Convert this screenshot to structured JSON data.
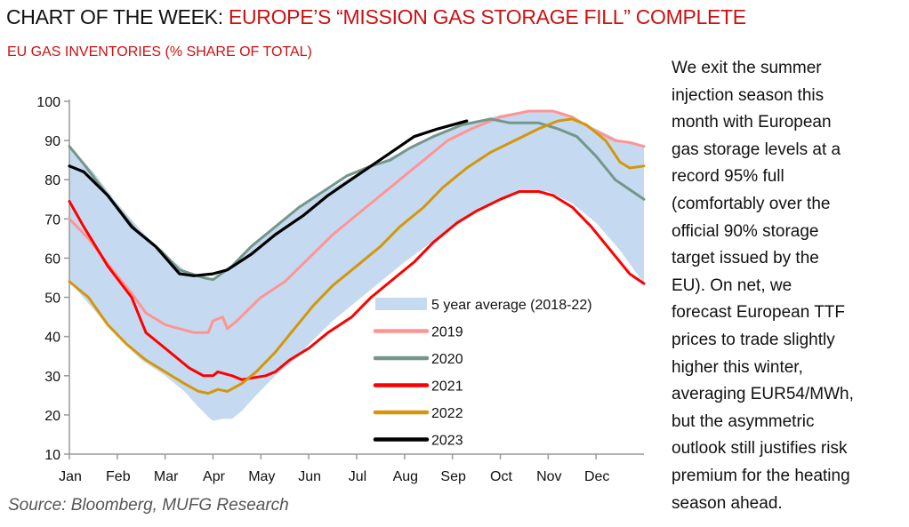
{
  "header": {
    "title_prefix": "CHART OF THE WEEK: ",
    "title_highlight": "EUROPE’S “MISSION GAS STORAGE FILL” COMPLETE",
    "subtitle": "EU GAS INVENTORIES (% SHARE OF TOTAL)"
  },
  "source": "Source: Bloomberg, MUFG Research",
  "commentary": {
    "lines": [
      "We exit the summer",
      "injection season this",
      "month with European",
      "gas storage levels at a",
      "record 95% full",
      "(comfortably over the",
      "official 90% storage",
      "target issued by the",
      "EU). On net, we",
      "forecast European TTF",
      "prices to trade slightly",
      "higher this winter,",
      "averaging EUR54/MWh,",
      "but the asymmetric",
      "outlook still justifies risk",
      "premium for the heating",
      "season ahead."
    ]
  },
  "chart_data": {
    "type": "line",
    "title": "EU GAS INVENTORIES (% SHARE OF TOTAL)",
    "xlabel": "",
    "ylabel": "",
    "x_unit": "months elapsed since Jan 1 (0-12)",
    "xlim": [
      0,
      12
    ],
    "ylim": [
      10,
      100
    ],
    "yticks": [
      10,
      20,
      30,
      40,
      50,
      60,
      70,
      80,
      90,
      100
    ],
    "xtick_labels": [
      "Jan",
      "Feb",
      "Mar",
      "Apr",
      "May",
      "Jun",
      "Jul",
      "Aug",
      "Sep",
      "Oct",
      "Nov",
      "Dec"
    ],
    "grid": false,
    "legend_position": "bottom-center",
    "band": {
      "name": "5 year average (2018-22)",
      "color": "#c5daf0",
      "x": [
        0,
        0.5,
        1.0,
        1.5,
        2.0,
        2.4,
        2.7,
        2.9,
        3.0,
        3.2,
        3.4,
        3.6,
        3.9,
        4.3,
        4.7,
        5.0,
        5.5,
        6.0,
        6.5,
        7.0,
        7.5,
        8.0,
        8.5,
        9.0,
        9.5,
        10.0,
        10.5,
        11.0,
        11.5,
        12.0
      ],
      "upper": [
        88.5,
        82,
        74,
        67,
        61,
        57,
        55.5,
        55,
        55,
        56,
        58,
        61,
        64,
        68,
        72,
        75,
        78,
        81.5,
        84.5,
        87.5,
        90.5,
        93,
        95,
        96.5,
        97.5,
        97.5,
        96,
        93,
        90,
        88.5
      ],
      "lower": [
        54,
        47,
        40,
        34,
        30,
        26,
        22,
        19.5,
        18.5,
        19,
        19,
        21,
        25,
        30,
        34,
        38,
        44,
        49,
        54,
        59,
        63.5,
        68,
        72,
        75,
        77,
        77,
        74,
        69,
        62,
        53.5
      ]
    },
    "series": [
      {
        "name": "2019",
        "color": "#ff9494",
        "x": [
          0,
          0.4,
          0.9,
          1.3,
          1.6,
          2.0,
          2.3,
          2.6,
          2.9,
          3.0,
          3.2,
          3.3,
          3.5,
          4.0,
          4.5,
          5.0,
          5.5,
          6.0,
          6.5,
          6.9,
          7.4,
          7.9,
          8.4,
          9.0,
          9.6,
          10.1,
          10.5,
          10.9,
          11.4,
          11.7,
          12.0
        ],
        "y": [
          70,
          65,
          57,
          51,
          46,
          43,
          42,
          41,
          41,
          44,
          45,
          42,
          44,
          50,
          54,
          60,
          66,
          71,
          76,
          80,
          85,
          90,
          93,
          96,
          97.5,
          97.5,
          96,
          93,
          90,
          89.5,
          88.5
        ]
      },
      {
        "name": "2020",
        "color": "#74978a",
        "x": [
          0,
          0.3,
          0.8,
          1.4,
          1.9,
          2.3,
          2.8,
          3.0,
          3.4,
          3.8,
          4.3,
          4.8,
          5.3,
          5.8,
          6.3,
          6.7,
          7.1,
          7.6,
          8.2,
          8.8,
          9.2,
          9.8,
          10.2,
          10.6,
          11.0,
          11.4,
          12.0
        ],
        "y": [
          88.5,
          84,
          76,
          67,
          62,
          57,
          55,
          54.5,
          58,
          63,
          68,
          73,
          77,
          81,
          83.5,
          85,
          88,
          91,
          94,
          95.5,
          94.5,
          94.5,
          93,
          91,
          86,
          80,
          75
        ]
      },
      {
        "name": "2021",
        "color": "#ff0000",
        "x": [
          0,
          0.3,
          0.8,
          1.3,
          1.6,
          1.9,
          2.2,
          2.5,
          2.8,
          3.0,
          3.1,
          3.4,
          3.6,
          4.1,
          4.3,
          4.6,
          5.0,
          5.4,
          5.9,
          6.3,
          6.7,
          7.2,
          7.6,
          8.1,
          8.5,
          9.0,
          9.4,
          9.8,
          10.1,
          10.5,
          10.9,
          11.3,
          11.7,
          12.0
        ],
        "y": [
          74.5,
          68,
          58,
          50,
          41,
          38,
          35,
          32,
          30,
          30,
          31,
          30,
          29,
          30,
          31,
          34,
          37,
          41,
          45,
          50,
          54,
          59,
          64,
          69,
          72,
          75,
          77,
          77,
          76,
          73,
          68,
          62,
          56,
          53.5
        ]
      },
      {
        "name": "2022",
        "color": "#d4960a",
        "x": [
          0,
          0.4,
          0.8,
          1.2,
          1.6,
          2.0,
          2.4,
          2.7,
          2.9,
          3.1,
          3.3,
          3.6,
          3.9,
          4.3,
          4.7,
          5.1,
          5.5,
          6.0,
          6.5,
          6.9,
          7.4,
          7.8,
          8.3,
          8.8,
          9.3,
          9.8,
          10.2,
          10.5,
          10.8,
          11.2,
          11.5,
          11.7,
          12.0
        ],
        "y": [
          54,
          50,
          43,
          38,
          34,
          31,
          28,
          26,
          25.5,
          26.5,
          26,
          28,
          31,
          36,
          42,
          48,
          53,
          58,
          63,
          68,
          73,
          78,
          83,
          87,
          90,
          93,
          95,
          95.5,
          94,
          90,
          84.5,
          83,
          83.5
        ]
      },
      {
        "name": "2023",
        "color": "#000000",
        "x": [
          0,
          0.3,
          0.8,
          1.3,
          1.8,
          2.3,
          2.6,
          3.0,
          3.3,
          3.8,
          4.3,
          4.9,
          5.4,
          6.0,
          6.6,
          7.2,
          7.7,
          8.3
        ],
        "y": [
          83.5,
          82,
          76,
          68,
          63,
          56,
          55.5,
          56,
          57,
          61,
          66,
          71,
          76,
          81,
          86,
          91,
          93,
          95
        ]
      }
    ]
  }
}
